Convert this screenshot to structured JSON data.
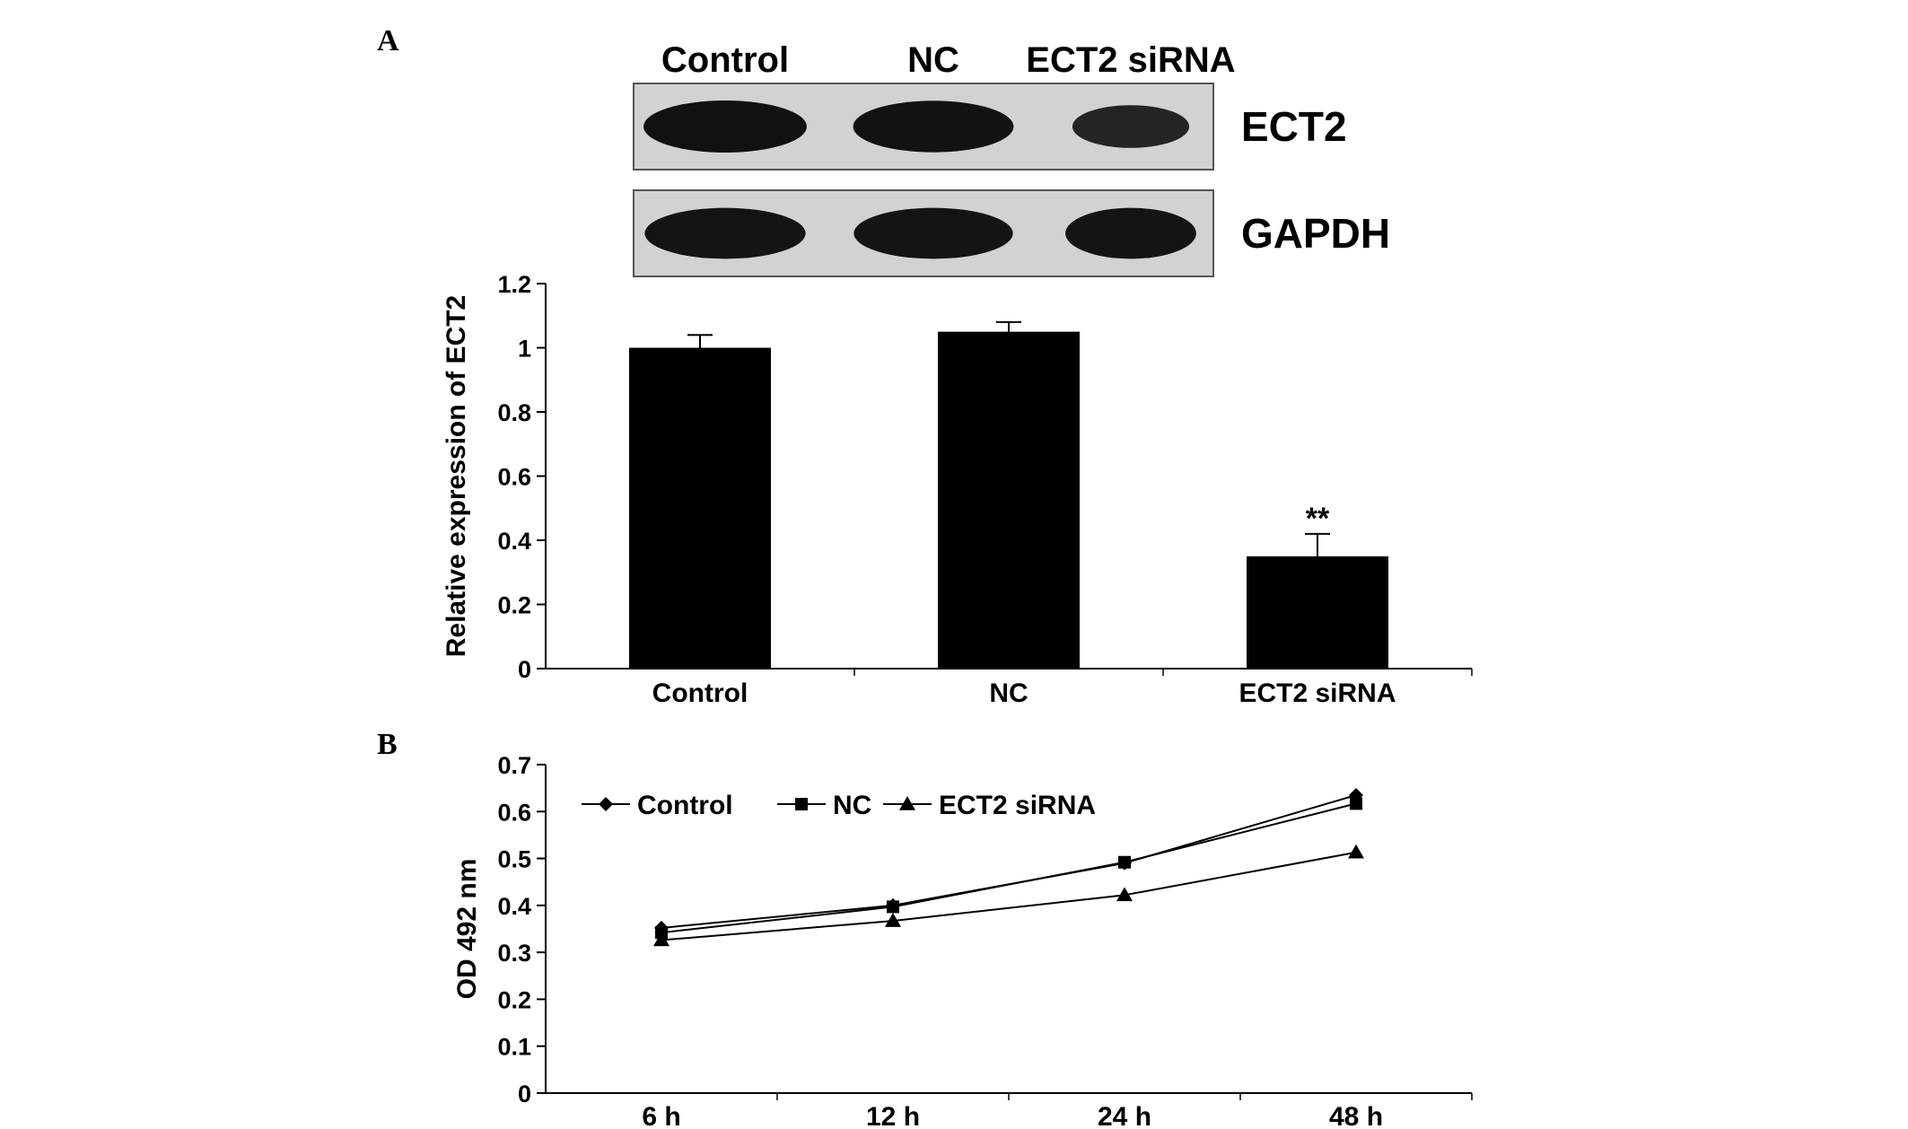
{
  "panels": {
    "a_label": "A",
    "b_label": "B"
  },
  "western_blot": {
    "lanes": [
      "Control",
      "NC",
      "ECT2 siRNA"
    ],
    "rows": [
      {
        "name": "ECT2",
        "band_intensity": [
          1.0,
          0.98,
          0.6
        ]
      },
      {
        "name": "GAPDH",
        "band_intensity": [
          0.95,
          0.95,
          0.95
        ]
      }
    ],
    "colors": {
      "background": "#d2d2d2",
      "band": "#111111"
    }
  },
  "chart_data": [
    {
      "type": "bar",
      "categories": [
        "Control",
        "NC",
        "ECT2 siRNA"
      ],
      "values": [
        1.0,
        1.05,
        0.35
      ],
      "errors": [
        0.04,
        0.03,
        0.07
      ],
      "annotations": [
        "",
        "",
        "**"
      ],
      "title": "",
      "xlabel": "",
      "ylabel": "Relative expression of ECT2",
      "ylim": [
        0,
        1.2
      ],
      "yticks": [
        "0",
        "0.2",
        "0.4",
        "0.6",
        "0.8",
        "1",
        "1.2"
      ],
      "grid": false,
      "bar_color": "#000000"
    },
    {
      "type": "line",
      "x": [
        "6 h",
        "12 h",
        "24 h",
        "48 h"
      ],
      "series": [
        {
          "name": "Control",
          "values": [
            0.352,
            0.4,
            0.49,
            0.635
          ],
          "marker": "diamond"
        },
        {
          "name": "NC",
          "values": [
            0.342,
            0.397,
            0.492,
            0.617
          ],
          "marker": "square"
        },
        {
          "name": "ECT2 siRNA",
          "values": [
            0.326,
            0.367,
            0.422,
            0.513
          ],
          "marker": "triangle"
        }
      ],
      "title": "",
      "xlabel": "",
      "ylabel": "OD 492 nm",
      "ylim": [
        0,
        0.7
      ],
      "yticks": [
        "0",
        "0.1",
        "0.2",
        "0.3",
        "0.4",
        "0.5",
        "0.6",
        "0.7"
      ],
      "legend": "top-left",
      "grid": false,
      "line_color": "#000000"
    }
  ]
}
